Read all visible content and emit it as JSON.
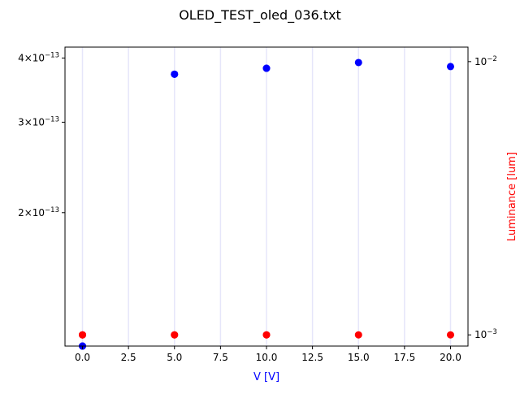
{
  "chart_data": {
    "type": "scatter",
    "title": "OLED_TEST_oled_036.txt",
    "xlabel": "V [V]",
    "ylabel_left": "",
    "ylabel_right": "Luminance [lum]",
    "xlim": [
      -0.95,
      20.95
    ],
    "ylim_left": [
      1.1e-13,
      4.2e-13
    ],
    "ylim_right": [
      0.00091,
      0.0113
    ],
    "yscale_left": "log",
    "yscale_right": "log",
    "grid": "vertical",
    "x_ticks": [
      "0.0",
      "2.5",
      "5.0",
      "7.5",
      "10.0",
      "12.5",
      "15.0",
      "17.5",
      "20.0"
    ],
    "x_tick_values": [
      0,
      2.5,
      5,
      7.5,
      10,
      12.5,
      15,
      17.5,
      20
    ],
    "y_left_ticks": [
      {
        "value": 4e-13,
        "mantissa": "4",
        "base": "10",
        "exp": "−13"
      },
      {
        "value": 3e-13,
        "mantissa": "3",
        "base": "10",
        "exp": "−13"
      },
      {
        "value": 2e-13,
        "mantissa": "2",
        "base": "10",
        "exp": "−13"
      }
    ],
    "y_right_ticks": [
      {
        "value": 0.01,
        "base": "10",
        "exp": "−2"
      },
      {
        "value": 0.001,
        "base": "10",
        "exp": "−3"
      }
    ],
    "series": [
      {
        "axis": "left",
        "color": "#0000ff",
        "x": [
          0,
          0,
          0,
          5,
          5,
          10,
          10,
          15,
          20
        ],
        "y": [
          1.1e-13,
          1.1e-13,
          1.1e-13,
          3.72e-13,
          3.72e-13,
          3.82e-13,
          3.82e-13,
          3.92e-13,
          3.85e-13
        ]
      },
      {
        "axis": "right",
        "color": "#ff0000",
        "x": [
          0,
          0,
          0,
          5,
          5,
          10,
          10,
          15,
          20
        ],
        "y": [
          0.001,
          0.001,
          0.001,
          0.001,
          0.001,
          0.001,
          0.001,
          0.001,
          0.001
        ]
      }
    ],
    "colors": {
      "left_axis": "#0000ff",
      "right_axis": "#ff0000",
      "grid": "#e6e6fa"
    }
  }
}
